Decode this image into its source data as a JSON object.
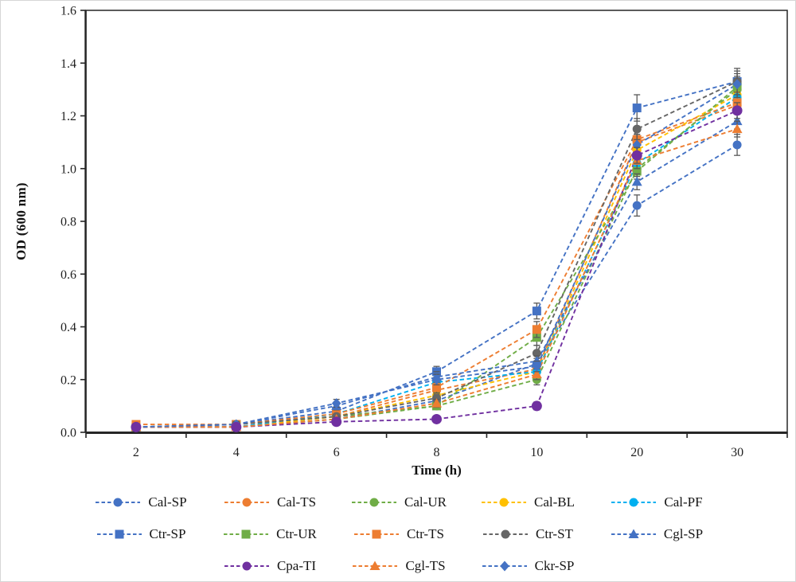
{
  "figure": {
    "background": "#ffffff",
    "frame_color": "#d6d6d6"
  },
  "chart_data": {
    "type": "line",
    "title": "",
    "xlabel": "Time (h)",
    "ylabel": "OD (600 nm)",
    "categories": [
      "2",
      "4",
      "6",
      "8",
      "10",
      "20",
      "30"
    ],
    "ylim": [
      0,
      1.6
    ],
    "ytick_labels": [
      "0.0",
      "0.2",
      "0.4",
      "0.6",
      "0.8",
      "1.0",
      "1.2",
      "1.4",
      "1.6"
    ],
    "grid": "off",
    "line_style": "dashed",
    "axis_color": "#262626",
    "error_bar_color": "#595959",
    "legend_position": "bottom",
    "legend_rows": [
      [
        "Cal-SP",
        "Cal-TS",
        "Cal-UR",
        "Cal-BL",
        "Cal-PF"
      ],
      [
        "Ctr-SP",
        "Ctr-UR",
        "Ctr-TS",
        "Ctr-ST",
        "Cgl-SP"
      ],
      [
        "Cpa-TI",
        "Cgl-TS",
        "Ckr-SP"
      ]
    ],
    "series": [
      {
        "name": "Cal-SP",
        "color": "#4472C4",
        "marker": "circle",
        "values": [
          0.02,
          0.02,
          0.05,
          0.12,
          0.26,
          0.86,
          1.09
        ],
        "errors": [
          0.005,
          0.005,
          0.01,
          0.015,
          0.02,
          0.04,
          0.04
        ]
      },
      {
        "name": "Cal-TS",
        "color": "#ED7D31",
        "marker": "circle",
        "values": [
          0.02,
          0.02,
          0.06,
          0.16,
          0.24,
          1.1,
          1.24
        ],
        "errors": [
          0.005,
          0.005,
          0.01,
          0.015,
          0.02,
          0.03,
          0.03
        ]
      },
      {
        "name": "Cal-UR",
        "color": "#70AD47",
        "marker": "circle",
        "values": [
          0.02,
          0.02,
          0.05,
          0.1,
          0.2,
          1.0,
          1.3
        ],
        "errors": [
          0.005,
          0.005,
          0.01,
          0.01,
          0.02,
          0.03,
          0.03
        ]
      },
      {
        "name": "Cal-BL",
        "color": "#FFC000",
        "marker": "circle",
        "values": [
          0.02,
          0.02,
          0.06,
          0.14,
          0.23,
          1.07,
          1.28
        ],
        "errors": [
          0.005,
          0.005,
          0.01,
          0.015,
          0.02,
          0.03,
          0.03
        ]
      },
      {
        "name": "Cal-PF",
        "color": "#00B0F0",
        "marker": "circle",
        "values": [
          0.02,
          0.02,
          0.07,
          0.19,
          0.23,
          1.02,
          1.27
        ],
        "errors": [
          0.005,
          0.005,
          0.01,
          0.015,
          0.02,
          0.03,
          0.03
        ]
      },
      {
        "name": "Ctr-SP",
        "color": "#4472C4",
        "marker": "square",
        "values": [
          0.02,
          0.03,
          0.08,
          0.23,
          0.46,
          1.23,
          1.33
        ],
        "errors": [
          0.005,
          0.01,
          0.01,
          0.02,
          0.03,
          0.05,
          0.04
        ]
      },
      {
        "name": "Ctr-UR",
        "color": "#70AD47",
        "marker": "square",
        "values": [
          0.02,
          0.03,
          0.06,
          0.1,
          0.36,
          0.99,
          1.31
        ],
        "errors": [
          0.005,
          0.005,
          0.01,
          0.01,
          0.03,
          0.03,
          0.04
        ]
      },
      {
        "name": "Ctr-TS",
        "color": "#ED7D31",
        "marker": "square",
        "values": [
          0.03,
          0.03,
          0.07,
          0.17,
          0.39,
          1.11,
          1.25
        ],
        "errors": [
          0.005,
          0.005,
          0.01,
          0.02,
          0.03,
          0.03,
          0.04
        ]
      },
      {
        "name": "Ctr-ST",
        "color": "#666666",
        "marker": "circle",
        "values": [
          0.02,
          0.03,
          0.06,
          0.13,
          0.3,
          1.15,
          1.33
        ],
        "errors": [
          0.005,
          0.005,
          0.01,
          0.015,
          0.03,
          0.04,
          0.05
        ]
      },
      {
        "name": "Cgl-SP",
        "color": "#4472C4",
        "marker": "triangle",
        "values": [
          0.02,
          0.03,
          0.1,
          0.21,
          0.27,
          0.95,
          1.18
        ],
        "errors": [
          0.005,
          0.005,
          0.015,
          0.02,
          0.02,
          0.03,
          0.03
        ]
      },
      {
        "name": "Cpa-TI",
        "color": "#7030A0",
        "marker": "circle",
        "values": [
          0.02,
          0.02,
          0.04,
          0.05,
          0.1,
          1.05,
          1.22
        ],
        "errors": [
          0.005,
          0.005,
          0.005,
          0.01,
          0.015,
          0.03,
          0.03
        ]
      },
      {
        "name": "Cgl-TS",
        "color": "#ED7D31",
        "marker": "triangle",
        "values": [
          0.02,
          0.02,
          0.05,
          0.11,
          0.22,
          1.03,
          1.15
        ],
        "errors": [
          0.005,
          0.005,
          0.01,
          0.015,
          0.02,
          0.03,
          0.03
        ]
      },
      {
        "name": "Ckr-SP",
        "color": "#4472C4",
        "marker": "diamond",
        "values": [
          0.02,
          0.03,
          0.11,
          0.2,
          0.25,
          1.09,
          1.32
        ],
        "errors": [
          0.005,
          0.01,
          0.015,
          0.02,
          0.02,
          0.04,
          0.04
        ]
      }
    ]
  }
}
